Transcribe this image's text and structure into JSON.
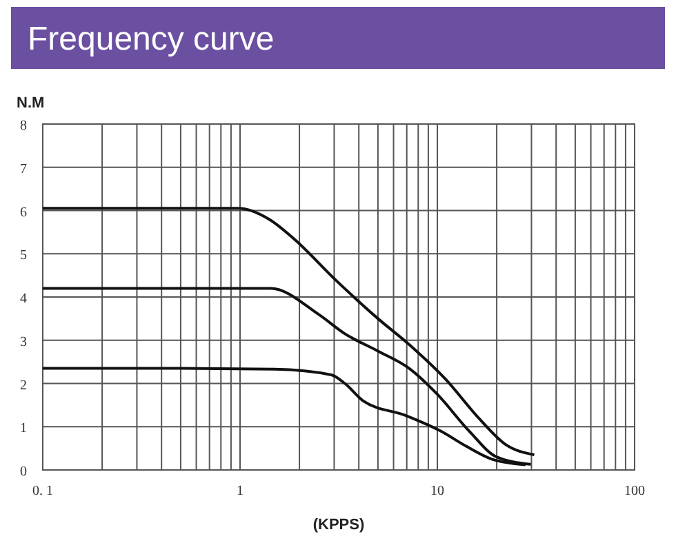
{
  "chart_data": {
    "type": "line",
    "title": "Frequency curve",
    "xlabel": "(KPPS)",
    "ylabel": "N.M",
    "log": "x",
    "grid": true,
    "marker": "none",
    "line_style": "solid",
    "xlim": [
      0.1,
      100
    ],
    "xticks": [
      {
        "value": 0.1,
        "label": "0. 1"
      },
      1,
      10,
      100
    ],
    "ylim": [
      0,
      8
    ],
    "yticks": [
      0,
      1,
      2,
      3,
      4,
      5,
      6,
      7,
      8
    ],
    "series": [
      {
        "color": "#111111",
        "x": [
          0.1,
          0.5,
          0.98,
          1.4,
          1.87,
          3.04,
          5,
          7.2,
          11,
          16.2,
          22,
          31
        ],
        "values": [
          6.05,
          6.05,
          6.05,
          5.8,
          5.35,
          4.4,
          3.5,
          2.9,
          2.1,
          1.2,
          0.6,
          0.35
        ]
      },
      {
        "color": "#111111",
        "x": [
          0.1,
          0.5,
          1.43,
          2.5,
          3.4,
          5,
          7.2,
          10,
          14.5,
          20,
          29.8
        ],
        "values": [
          4.2,
          4.2,
          4.2,
          3.6,
          3.15,
          2.75,
          2.35,
          1.75,
          0.9,
          0.3,
          0.13
        ]
      },
      {
        "color": "#111111",
        "x": [
          0.1,
          0.5,
          1.5,
          2.9,
          3.4,
          4.2,
          7,
          10.4,
          14,
          18.9,
          28
        ],
        "values": [
          2.35,
          2.35,
          2.33,
          2.2,
          2.0,
          1.6,
          1.25,
          0.9,
          0.55,
          0.25,
          0.12
        ]
      }
    ]
  }
}
